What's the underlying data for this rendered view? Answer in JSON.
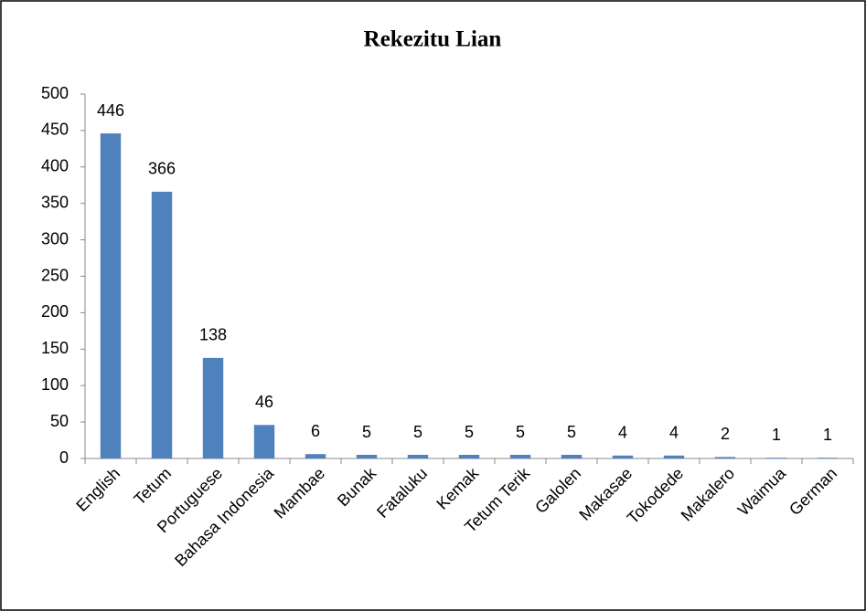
{
  "chart_data": {
    "type": "bar",
    "title": "Rekezitu Lian",
    "categories": [
      "English",
      "Tetum",
      "Portuguese",
      "Bahasa Indonesia",
      "Mambae",
      "Bunak",
      "Fataluku",
      "Kemak",
      "Tetum Terik",
      "Galolen",
      "Makasae",
      "Tokodede",
      "Makalero",
      "Waimua",
      "German"
    ],
    "values": [
      446,
      366,
      138,
      46,
      6,
      5,
      5,
      5,
      5,
      5,
      4,
      4,
      2,
      1,
      1
    ],
    "color": "#4f81bd",
    "ylim": [
      0,
      500
    ],
    "yticks": [
      0,
      50,
      100,
      150,
      200,
      250,
      300,
      350,
      400,
      450,
      500
    ],
    "grid": false
  }
}
